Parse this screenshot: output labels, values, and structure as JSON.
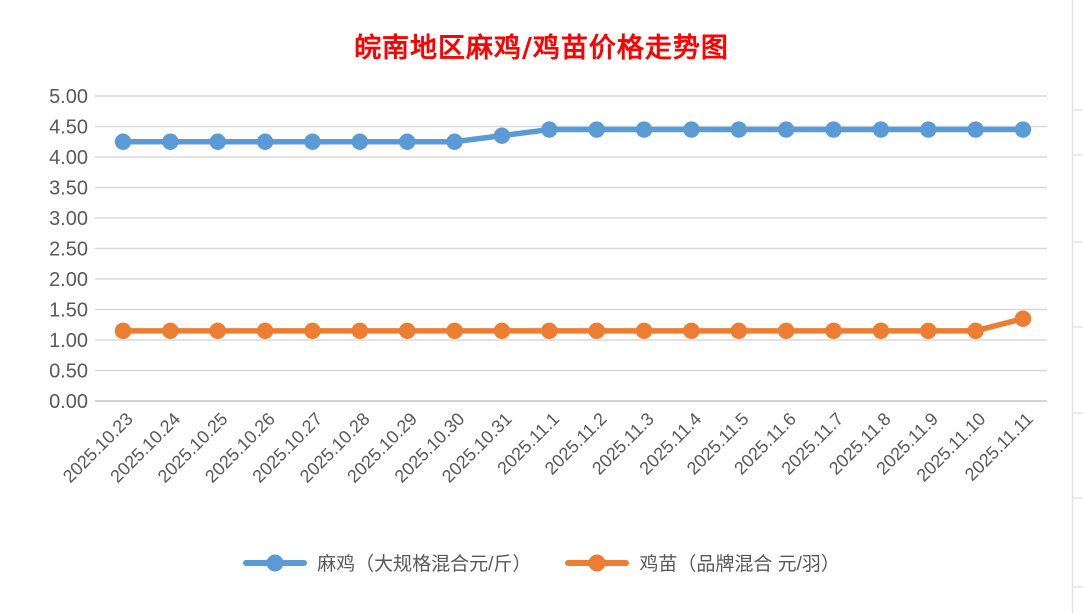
{
  "title": {
    "text": "皖南地区麻鸡/鸡苗价格走势图",
    "color": "#FF0000"
  },
  "chart_data": {
    "type": "line",
    "title": "皖南地区麻鸡/鸡苗价格走势图",
    "categories": [
      "2025.10.23",
      "2025.10.24",
      "2025.10.25",
      "2025.10.26",
      "2025.10.27",
      "2025.10.28",
      "2025.10.29",
      "2025.10.30",
      "2025.10.31",
      "2025.11.1",
      "2025.11.2",
      "2025.11.3",
      "2025.11.4",
      "2025.11.5",
      "2025.11.6",
      "2025.11.7",
      "2025.11.8",
      "2025.11.9",
      "2025.11.10",
      "2025.11.11"
    ],
    "series": [
      {
        "name": "麻鸡（大规格混合元/斤）",
        "color": "#5B9BD5",
        "values": [
          4.25,
          4.25,
          4.25,
          4.25,
          4.25,
          4.25,
          4.25,
          4.25,
          4.35,
          4.45,
          4.45,
          4.45,
          4.45,
          4.45,
          4.45,
          4.45,
          4.45,
          4.45,
          4.45,
          4.45
        ]
      },
      {
        "name": "鸡苗（品牌混合 元/羽）",
        "color": "#ED7D31",
        "values": [
          1.15,
          1.15,
          1.15,
          1.15,
          1.15,
          1.15,
          1.15,
          1.15,
          1.15,
          1.15,
          1.15,
          1.15,
          1.15,
          1.15,
          1.15,
          1.15,
          1.15,
          1.15,
          1.15,
          1.35
        ]
      }
    ],
    "ylim": [
      0,
      5
    ],
    "ytick_labels": [
      "0.00",
      "0.50",
      "1.00",
      "1.50",
      "2.00",
      "2.50",
      "3.00",
      "3.50",
      "4.00",
      "4.50",
      "5.00"
    ],
    "grid": "horizontal",
    "gridline_color": "#D9D9D9",
    "axis_text_color": "#595959",
    "legend_position": "bottom",
    "xlabel": "",
    "ylabel": ""
  }
}
